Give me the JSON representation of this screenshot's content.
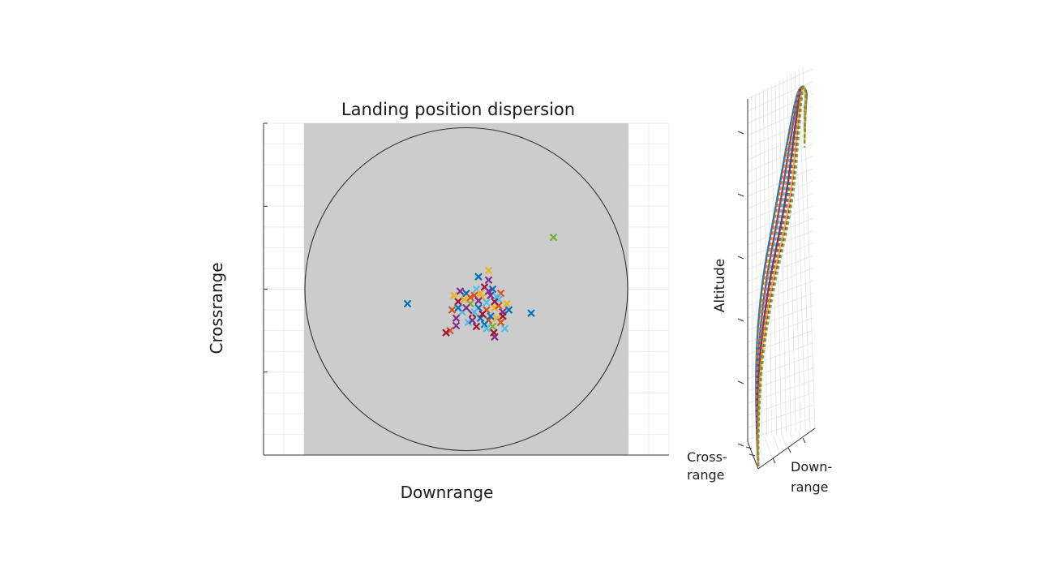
{
  "chart_data": [
    {
      "type": "scatter",
      "title": "Landing position dispersion",
      "xlabel": "Downrange",
      "ylabel": "Crossrange",
      "xlim": [
        -5,
        5
      ],
      "ylim": [
        -4,
        4
      ],
      "grid": true,
      "tick_labels_visible": false,
      "region": {
        "shape": "square",
        "color": "#cccccc",
        "half_width": 4
      },
      "boundary": {
        "shape": "circle",
        "center": [
          0,
          0
        ],
        "radius": 4,
        "color": "#333333"
      },
      "marker": "x",
      "palette": [
        "#0072bd",
        "#d95319",
        "#edb120",
        "#7e2f8e",
        "#77ac30",
        "#4dbeee",
        "#a2142f"
      ],
      "points": [
        {
          "x": 2.15,
          "y": 1.25,
          "c": 4
        },
        {
          "x": -1.45,
          "y": -0.35,
          "c": 0
        },
        {
          "x": 1.6,
          "y": -0.58,
          "c": 0
        },
        {
          "x": 0.55,
          "y": 0.45,
          "c": 2
        },
        {
          "x": 0.3,
          "y": 0.3,
          "c": 0
        },
        {
          "x": 0.55,
          "y": 0.22,
          "c": 3
        },
        {
          "x": -0.25,
          "y": -0.88,
          "c": 3
        },
        {
          "x": -0.4,
          "y": -1.0,
          "c": 1
        },
        {
          "x": -0.5,
          "y": -1.05,
          "c": 6
        },
        {
          "x": 0.7,
          "y": -1.15,
          "c": 3
        },
        {
          "x": 0.68,
          "y": -1.05,
          "c": 6
        },
        {
          "x": 0.95,
          "y": -0.95,
          "c": 5
        },
        {
          "x": 0.0,
          "y": -0.1,
          "c": 0
        },
        {
          "x": 0.2,
          "y": -0.15,
          "c": 1
        },
        {
          "x": 0.4,
          "y": -0.2,
          "c": 2
        },
        {
          "x": 0.6,
          "y": -0.15,
          "c": 3
        },
        {
          "x": 0.8,
          "y": -0.25,
          "c": 5
        },
        {
          "x": -0.2,
          "y": -0.3,
          "c": 6
        },
        {
          "x": 0.1,
          "y": -0.35,
          "c": 4
        },
        {
          "x": 0.3,
          "y": -0.45,
          "c": 0
        },
        {
          "x": 0.5,
          "y": -0.5,
          "c": 1
        },
        {
          "x": 0.7,
          "y": -0.45,
          "c": 2
        },
        {
          "x": 0.9,
          "y": -0.55,
          "c": 3
        },
        {
          "x": -0.1,
          "y": -0.55,
          "c": 5
        },
        {
          "x": 0.15,
          "y": -0.6,
          "c": 6
        },
        {
          "x": 0.35,
          "y": -0.7,
          "c": 0
        },
        {
          "x": 0.55,
          "y": -0.75,
          "c": 1
        },
        {
          "x": 0.75,
          "y": -0.7,
          "c": 2
        },
        {
          "x": -0.25,
          "y": -0.7,
          "c": 3
        },
        {
          "x": 0.05,
          "y": -0.8,
          "c": 5
        },
        {
          "x": 0.25,
          "y": -0.9,
          "c": 6
        },
        {
          "x": 0.45,
          "y": -0.85,
          "c": 0
        },
        {
          "x": 0.65,
          "y": -0.9,
          "c": 4
        },
        {
          "x": 0.85,
          "y": -0.8,
          "c": 1
        },
        {
          "x": -0.3,
          "y": -0.15,
          "c": 2
        },
        {
          "x": 0.0,
          "y": -0.45,
          "c": 3
        },
        {
          "x": 0.2,
          "y": -0.55,
          "c": 5
        },
        {
          "x": 0.4,
          "y": -0.6,
          "c": 6
        },
        {
          "x": 0.6,
          "y": -0.65,
          "c": 0
        },
        {
          "x": 0.8,
          "y": -0.4,
          "c": 1
        },
        {
          "x": 1.0,
          "y": -0.35,
          "c": 2
        },
        {
          "x": -0.15,
          "y": -0.05,
          "c": 3
        },
        {
          "x": 0.25,
          "y": 0.0,
          "c": 5
        },
        {
          "x": 0.45,
          "y": 0.05,
          "c": 6
        },
        {
          "x": 0.65,
          "y": 0.0,
          "c": 0
        },
        {
          "x": 0.85,
          "y": -0.1,
          "c": 1
        },
        {
          "x": -0.05,
          "y": -0.25,
          "c": 2
        },
        {
          "x": 0.3,
          "y": -0.28,
          "c": 3
        },
        {
          "x": 0.5,
          "y": -0.32,
          "c": 5
        },
        {
          "x": 0.7,
          "y": -0.3,
          "c": 6
        },
        {
          "x": 0.1,
          "y": -0.2,
          "c": 1
        },
        {
          "x": 0.35,
          "y": -0.1,
          "c": 2
        },
        {
          "x": 0.55,
          "y": -0.05,
          "c": 3
        },
        {
          "x": 0.75,
          "y": -0.18,
          "c": 5
        },
        {
          "x": -0.2,
          "y": -0.45,
          "c": 0
        },
        {
          "x": 0.15,
          "y": -0.75,
          "c": 3
        },
        {
          "x": 0.5,
          "y": -0.95,
          "c": 5
        },
        {
          "x": 0.9,
          "y": -0.65,
          "c": 6
        },
        {
          "x": 1.05,
          "y": -0.5,
          "c": 0
        },
        {
          "x": -0.35,
          "y": -0.5,
          "c": 1
        }
      ]
    },
    {
      "type": "line",
      "view": "3d",
      "xlabel": "Down-\nrange",
      "ylabel": "Cross-\nrange",
      "zlabel": "Altitude",
      "grid": true,
      "tick_labels_visible": false,
      "trajectory_count": 12
    }
  ]
}
